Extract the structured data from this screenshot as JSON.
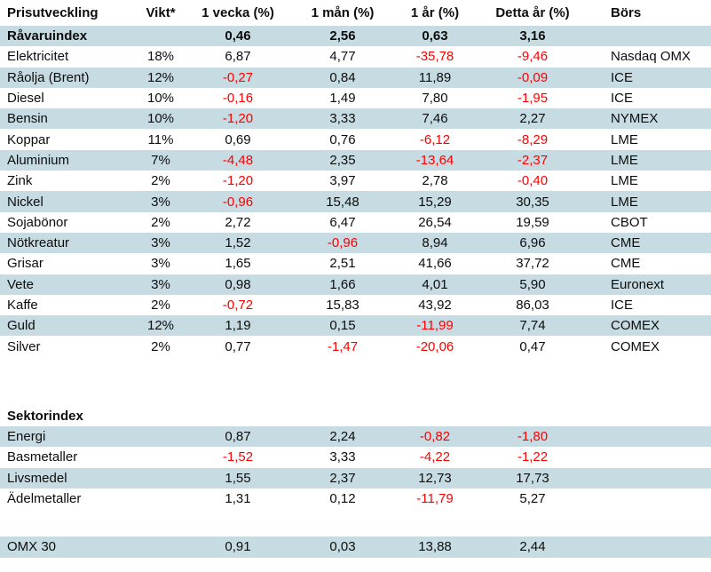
{
  "colors": {
    "shaded_row": "#c6dbe2",
    "negative_value": "#ff0000",
    "text": "#0d0d0d",
    "background": "#ffffff"
  },
  "chart_data": {
    "type": "table",
    "title": "Prisutveckling",
    "columns": [
      "Prisutveckling",
      "Vikt*",
      "1 vecka (%)",
      "1 mån (%)",
      "1 år (%)",
      "Detta år (%)",
      "Börs"
    ],
    "rows": [
      {
        "type": "index",
        "shaded": true,
        "bold": true,
        "cells": [
          "Råvaruindex",
          "",
          "0,46",
          "2,56",
          "0,63",
          "3,16",
          ""
        ]
      },
      {
        "type": "data",
        "shaded": false,
        "bold": false,
        "cells": [
          "Elektricitet",
          "18%",
          "6,87",
          "4,77",
          "-35,78",
          "-9,46",
          "Nasdaq OMX"
        ]
      },
      {
        "type": "data",
        "shaded": true,
        "bold": false,
        "cells": [
          "Råolja (Brent)",
          "12%",
          "-0,27",
          "0,84",
          "11,89",
          "-0,09",
          "ICE"
        ]
      },
      {
        "type": "data",
        "shaded": false,
        "bold": false,
        "cells": [
          "Diesel",
          "10%",
          "-0,16",
          "1,49",
          "7,80",
          "-1,95",
          "ICE"
        ]
      },
      {
        "type": "data",
        "shaded": true,
        "bold": false,
        "cells": [
          "Bensin",
          "10%",
          "-1,20",
          "3,33",
          "7,46",
          "2,27",
          "NYMEX"
        ]
      },
      {
        "type": "data",
        "shaded": false,
        "bold": false,
        "cells": [
          "Koppar",
          "11%",
          "0,69",
          "0,76",
          "-6,12",
          "-8,29",
          "LME"
        ]
      },
      {
        "type": "data",
        "shaded": true,
        "bold": false,
        "cells": [
          "Aluminium",
          "7%",
          "-4,48",
          "2,35",
          "-13,64",
          "-2,37",
          "LME"
        ]
      },
      {
        "type": "data",
        "shaded": false,
        "bold": false,
        "cells": [
          "Zink",
          "2%",
          "-1,20",
          "3,97",
          "2,78",
          "-0,40",
          "LME"
        ]
      },
      {
        "type": "data",
        "shaded": true,
        "bold": false,
        "cells": [
          "Nickel",
          "3%",
          "-0,96",
          "15,48",
          "15,29",
          "30,35",
          "LME"
        ]
      },
      {
        "type": "data",
        "shaded": false,
        "bold": false,
        "cells": [
          "Sojabönor",
          "2%",
          "2,72",
          "6,47",
          "26,54",
          "19,59",
          "CBOT"
        ]
      },
      {
        "type": "data",
        "shaded": true,
        "bold": false,
        "cells": [
          "Nötkreatur",
          "3%",
          "1,52",
          "-0,96",
          "8,94",
          "6,96",
          "CME"
        ]
      },
      {
        "type": "data",
        "shaded": false,
        "bold": false,
        "cells": [
          "Grisar",
          "3%",
          "1,65",
          "2,51",
          "41,66",
          "37,72",
          "CME"
        ]
      },
      {
        "type": "data",
        "shaded": true,
        "bold": false,
        "cells": [
          "Vete",
          "3%",
          "0,98",
          "1,66",
          "4,01",
          "5,90",
          "Euronext"
        ]
      },
      {
        "type": "data",
        "shaded": false,
        "bold": false,
        "cells": [
          "Kaffe",
          "2%",
          "-0,72",
          "15,83",
          "43,92",
          "86,03",
          "ICE"
        ]
      },
      {
        "type": "data",
        "shaded": true,
        "bold": false,
        "cells": [
          "Guld",
          "12%",
          "1,19",
          "0,15",
          "-11,99",
          "7,74",
          "COMEX"
        ]
      },
      {
        "type": "data",
        "shaded": false,
        "bold": false,
        "cells": [
          "Silver",
          "2%",
          "0,77",
          "-1,47",
          "-20,06",
          "0,47",
          "COMEX"
        ]
      },
      {
        "type": "spacer",
        "height": 55
      },
      {
        "type": "section",
        "shaded": false,
        "bold": true,
        "cells": [
          "Sektorindex",
          "",
          "",
          "",
          "",
          "",
          ""
        ]
      },
      {
        "type": "data",
        "shaded": true,
        "bold": false,
        "cells": [
          "Energi",
          "",
          "0,87",
          "2,24",
          "-0,82",
          "-1,80",
          ""
        ]
      },
      {
        "type": "data",
        "shaded": false,
        "bold": false,
        "cells": [
          "Basmetaller",
          "",
          "-1,52",
          "3,33",
          "-4,22",
          "-1,22",
          ""
        ]
      },
      {
        "type": "data",
        "shaded": true,
        "bold": false,
        "cells": [
          "Livsmedel",
          "",
          "1,55",
          "2,37",
          "12,73",
          "17,73",
          ""
        ]
      },
      {
        "type": "data",
        "shaded": false,
        "bold": false,
        "cells": [
          "Ädelmetaller",
          "",
          "1,31",
          "0,12",
          "-11,79",
          "5,27",
          ""
        ]
      },
      {
        "type": "spacer",
        "height": 31
      },
      {
        "type": "data",
        "shaded": true,
        "bold": false,
        "cells": [
          "OMX 30",
          "",
          "0,91",
          "0,03",
          "13,88",
          "2,44",
          ""
        ]
      }
    ]
  }
}
